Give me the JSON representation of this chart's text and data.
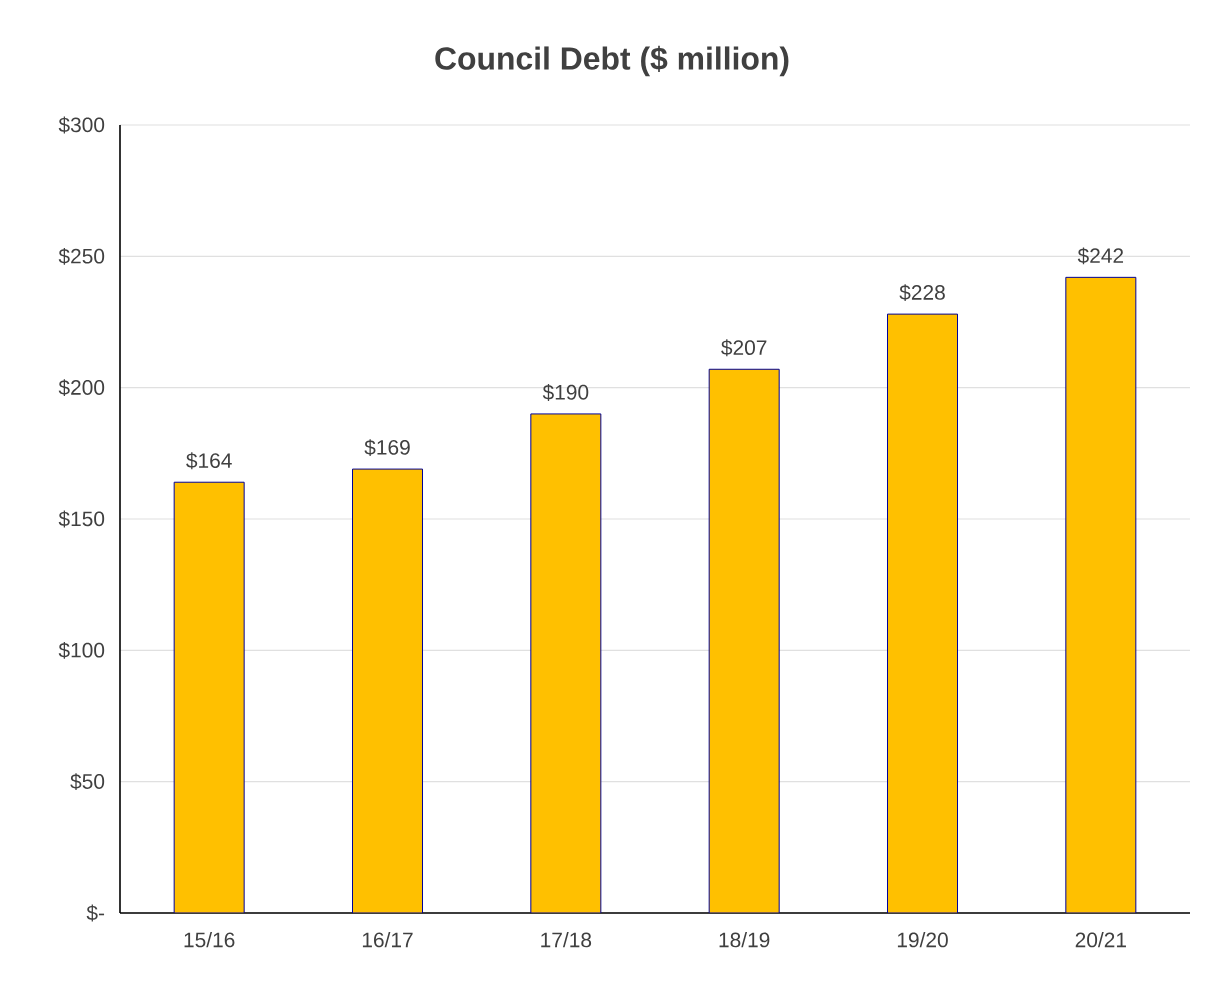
{
  "chart_data": {
    "type": "bar",
    "title": "Council Debt ($ million)",
    "categories": [
      "15/16",
      "16/17",
      "17/18",
      "18/19",
      "19/20",
      "20/21"
    ],
    "values": [
      164,
      169,
      190,
      207,
      228,
      242
    ],
    "value_labels": [
      "$164",
      "$169",
      "$190",
      "$207",
      "$228",
      "$242"
    ],
    "color": "#ffc000",
    "ylim": [
      0,
      300
    ],
    "yticks": [
      {
        "value": 0,
        "label": "$-"
      },
      {
        "value": 50,
        "label": "$50"
      },
      {
        "value": 100,
        "label": "$100"
      },
      {
        "value": 150,
        "label": "$150"
      },
      {
        "value": 200,
        "label": "$200"
      },
      {
        "value": 250,
        "label": "$250"
      },
      {
        "value": 300,
        "label": "$300"
      }
    ],
    "grid": "y"
  }
}
